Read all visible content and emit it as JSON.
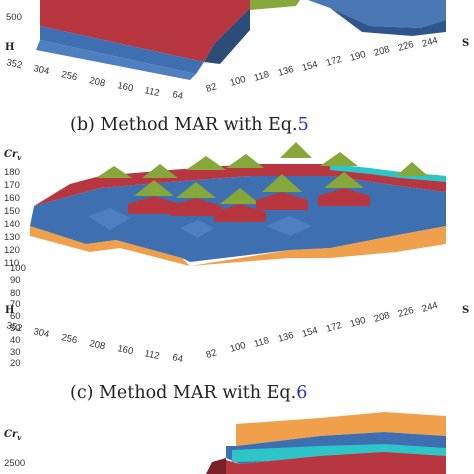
{
  "panel_b": {
    "y_tick_labels": [
      "500"
    ],
    "h_axis_label": "H",
    "s_axis_label": "S",
    "h_tick_labels": [
      "352",
      "304",
      "256",
      "208",
      "160",
      "112",
      "64"
    ],
    "s_tick_labels": [
      "82",
      "100",
      "118",
      "136",
      "154",
      "172",
      "190",
      "208",
      "226",
      "244"
    ],
    "caption_text": "(b) Method MAR with Eq.",
    "caption_ref": "5"
  },
  "panel_c": {
    "z_axis_label_main": "Cr",
    "z_axis_label_sub": "v",
    "y_tick_labels": [
      "180",
      "170",
      "160",
      "150",
      "140",
      "130",
      "120",
      "110",
      "100",
      "90",
      "80",
      "70",
      "60",
      "50",
      "40",
      "30",
      "20"
    ],
    "h_axis_label": "H",
    "s_axis_label": "S",
    "h_tick_labels": [
      "352",
      "304",
      "256",
      "208",
      "160",
      "112",
      "64"
    ],
    "s_tick_labels": [
      "82",
      "100",
      "118",
      "136",
      "154",
      "172",
      "190",
      "208",
      "226",
      "244"
    ],
    "caption_text": "(c) Method MAR with Eq.",
    "caption_ref": "6"
  },
  "panel_d": {
    "z_axis_label_main": "Cr",
    "z_axis_label_sub": "v",
    "y_tick_labels": [
      "2500"
    ]
  },
  "colors": {
    "band_orange": "#f0a04b",
    "band_blue": "#3e6fb0",
    "band_red": "#b8363f",
    "band_green": "#86a83a",
    "band_teal": "#2ec5c8",
    "caption_ref": "#2a2acc"
  },
  "chart_data": [
    {
      "type": "surface3d",
      "title": "(b) Method MAR with Eq.5",
      "zlabel": "",
      "xlabel": "H",
      "ylabel": "S",
      "x_ticks": [
        352,
        304,
        256,
        208,
        160,
        112,
        64
      ],
      "y_ticks": [
        82,
        100,
        118,
        136,
        154,
        172,
        190,
        208,
        226,
        244
      ],
      "z_ticks_visible": [
        500
      ]
    },
    {
      "type": "surface3d",
      "title": "(c) Method MAR with Eq.6",
      "zlabel": "Crv",
      "xlabel": "H",
      "ylabel": "S",
      "x_ticks": [
        352,
        304,
        256,
        208,
        160,
        112,
        64
      ],
      "y_ticks": [
        82,
        100,
        118,
        136,
        154,
        172,
        190,
        208,
        226,
        244
      ],
      "zlim": [
        20,
        180
      ],
      "z_ticks": [
        20,
        30,
        40,
        50,
        60,
        70,
        80,
        90,
        100,
        110,
        120,
        130,
        140,
        150,
        160,
        170,
        180
      ],
      "band_boundaries": [
        100,
        120,
        140,
        160,
        180
      ]
    },
    {
      "type": "surface3d",
      "title": "",
      "zlabel": "Crv",
      "z_ticks_visible": [
        2500
      ]
    }
  ]
}
